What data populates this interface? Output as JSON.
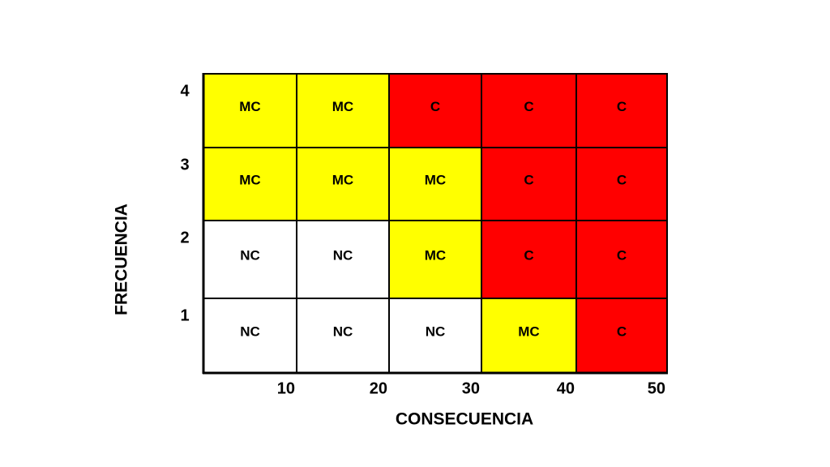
{
  "x_axis": {
    "title": "CONSECUENCIA",
    "labels": [
      "10",
      "20",
      "30",
      "40",
      "50"
    ]
  },
  "y_axis": {
    "title": "FRECUENCIA",
    "labels": [
      "4",
      "3",
      "2",
      "1"
    ]
  },
  "matrix": {
    "rows": [
      [
        {
          "label": "MC",
          "color": "#ffff00"
        },
        {
          "label": "MC",
          "color": "#ffff00"
        },
        {
          "label": "C",
          "color": "#ff0000"
        },
        {
          "label": "C",
          "color": "#ff0000"
        },
        {
          "label": "C",
          "color": "#ff0000"
        }
      ],
      [
        {
          "label": "MC",
          "color": "#ffff00"
        },
        {
          "label": "MC",
          "color": "#ffff00"
        },
        {
          "label": "MC",
          "color": "#ffff00"
        },
        {
          "label": "C",
          "color": "#ff0000"
        },
        {
          "label": "C",
          "color": "#ff0000"
        }
      ],
      [
        {
          "label": "NC",
          "color": "#ffffff"
        },
        {
          "label": "NC",
          "color": "#ffffff"
        },
        {
          "label": "MC",
          "color": "#ffff00"
        },
        {
          "label": "C",
          "color": "#ff0000"
        },
        {
          "label": "C",
          "color": "#ff0000"
        }
      ],
      [
        {
          "label": "NC",
          "color": "#ffffff"
        },
        {
          "label": "NC",
          "color": "#ffffff"
        },
        {
          "label": "NC",
          "color": "#ffffff"
        },
        {
          "label": "MC",
          "color": "#ffff00"
        },
        {
          "label": "C",
          "color": "#ff0000"
        }
      ]
    ]
  }
}
